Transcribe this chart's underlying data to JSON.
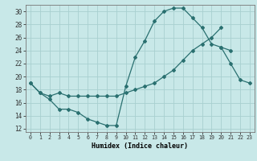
{
  "bg_color": "#c8e8e8",
  "line_color": "#2a7070",
  "grid_color": "#a8d0d0",
  "xlabel": "Humidex (Indice chaleur)",
  "xlim": [
    -0.5,
    23.5
  ],
  "ylim": [
    11.5,
    31.0
  ],
  "xtick_labels": [
    "0",
    "1",
    "2",
    "3",
    "4",
    "5",
    "6",
    "7",
    "8",
    "9",
    "10",
    "11",
    "12",
    "13",
    "14",
    "15",
    "16",
    "17",
    "18",
    "19",
    "20",
    "21",
    "22",
    "23"
  ],
  "ytick_vals": [
    12,
    14,
    16,
    18,
    20,
    22,
    24,
    26,
    28,
    30
  ],
  "line1_x": [
    0,
    1,
    2,
    3,
    4,
    5,
    6,
    7,
    8,
    9,
    10,
    11,
    12,
    13,
    14,
    15,
    16,
    17,
    18,
    19,
    20,
    21
  ],
  "line1_y": [
    19.0,
    17.5,
    16.5,
    15.0,
    15.0,
    14.5,
    13.5,
    13.0,
    12.5,
    12.5,
    18.5,
    23.0,
    25.5,
    28.5,
    30.0,
    30.5,
    30.5,
    29.0,
    27.5,
    25.0,
    24.5,
    24.0
  ],
  "line2_x": [
    0,
    1,
    2,
    3,
    4,
    5,
    6,
    7,
    8,
    9,
    10,
    11,
    12,
    13,
    14,
    15,
    16,
    17,
    18,
    19,
    20
  ],
  "line2_y": [
    19.0,
    17.5,
    17.0,
    17.5,
    17.0,
    17.0,
    17.0,
    17.0,
    17.0,
    17.0,
    17.5,
    18.0,
    18.5,
    19.0,
    20.0,
    21.0,
    22.5,
    24.0,
    25.0,
    26.0,
    27.5
  ],
  "line3_x": [
    20,
    21,
    22,
    23
  ],
  "line3_y": [
    24.5,
    22.0,
    19.5,
    19.0
  ]
}
